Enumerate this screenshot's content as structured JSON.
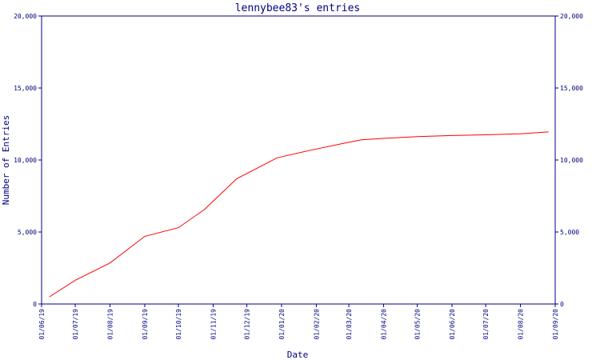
{
  "chart_data": {
    "type": "line",
    "title": "lennybee83's entries",
    "xlabel": "Date",
    "ylabel": "Number of Entries",
    "ylim": [
      0,
      20000
    ],
    "y_ticks": [
      0,
      5000,
      10000,
      15000,
      20000
    ],
    "y_tick_labels": [
      "0",
      "5,000",
      "10,000",
      "15,000",
      "20,000"
    ],
    "x_ticks": [
      "2019-06-01",
      "2019-07-01",
      "2019-08-01",
      "2019-09-01",
      "2019-10-01",
      "2019-11-01",
      "2019-12-01",
      "2020-01-01",
      "2020-02-01",
      "2020-03-01",
      "2020-04-01",
      "2020-05-01",
      "2020-06-01",
      "2020-07-01",
      "2020-08-01",
      "2020-09-01"
    ],
    "x_tick_labels": [
      "01/06/19",
      "01/07/19",
      "01/08/19",
      "01/09/19",
      "01/10/19",
      "01/11/19",
      "01/12/19",
      "01/01/20",
      "01/02/20",
      "01/03/20",
      "01/04/20",
      "01/05/20",
      "01/06/20",
      "01/07/20",
      "01/08/20",
      "01/09/20"
    ],
    "xlim": [
      "2019-06-01",
      "2020-09-01"
    ],
    "grid": false,
    "axes_color": "#000080",
    "series": [
      {
        "color": "#ff0000",
        "x": [
          "2019-06-08",
          "2019-07-01",
          "2019-08-01",
          "2019-09-01",
          "2019-10-01",
          "2019-10-24",
          "2019-11-22",
          "2019-12-28",
          "2020-01-25",
          "2020-02-25",
          "2020-03-12",
          "2020-04-01",
          "2020-05-01",
          "2020-06-01",
          "2020-07-01",
          "2020-08-01",
          "2020-08-26"
        ],
        "values": [
          500,
          1650,
          2850,
          4700,
          5300,
          6550,
          8700,
          10150,
          10650,
          11150,
          11400,
          11500,
          11630,
          11700,
          11750,
          11820,
          11950
        ]
      }
    ]
  }
}
